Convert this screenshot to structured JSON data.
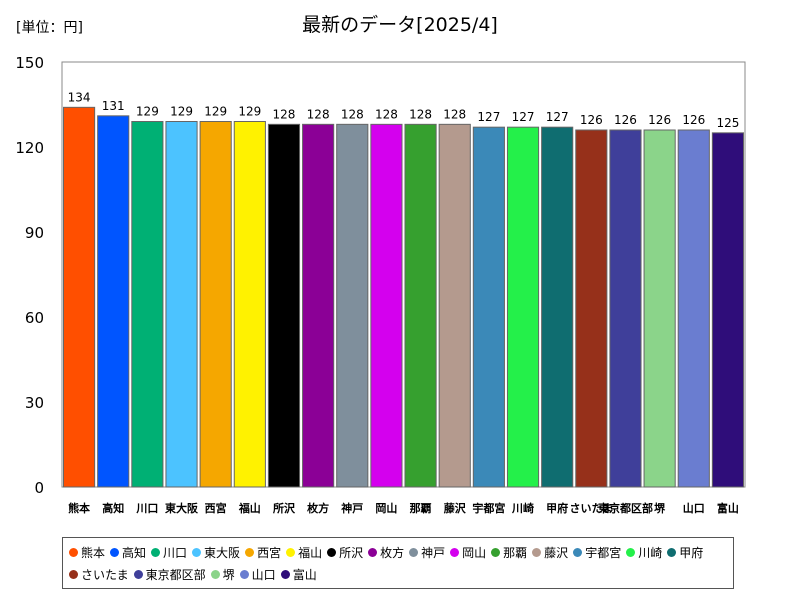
{
  "chart_data": {
    "type": "bar",
    "title": "最新のデータ[2025/4]",
    "unit_label": "[単位：円]",
    "ylim": [
      0,
      150
    ],
    "yticks": [
      0,
      30,
      60,
      90,
      120,
      150
    ],
    "grid": false,
    "legend_position": "bottom",
    "categories": [
      "熊本",
      "高知",
      "川口",
      "東大阪",
      "西宮",
      "福山",
      "所沢",
      "枚方",
      "神戸",
      "岡山",
      "那覇",
      "藤沢",
      "宇都宮",
      "川崎",
      "甲府",
      "さいたま",
      "東京都区部",
      "堺",
      "山口",
      "富山"
    ],
    "values": [
      134,
      131,
      129,
      129,
      129,
      129,
      128,
      128,
      128,
      128,
      128,
      128,
      127,
      127,
      127,
      126,
      126,
      126,
      126,
      125
    ],
    "colors": [
      "#ff4f00",
      "#0055ff",
      "#00b074",
      "#4cc3ff",
      "#f5a700",
      "#fff200",
      "#000000",
      "#8b0096",
      "#7f8f9c",
      "#d400ee",
      "#36a02f",
      "#b49a8e",
      "#3b89b8",
      "#24f04a",
      "#0f6d70",
      "#96301a",
      "#3f3f9a",
      "#8bd48a",
      "#6a7dd0",
      "#2f0d7a"
    ]
  }
}
